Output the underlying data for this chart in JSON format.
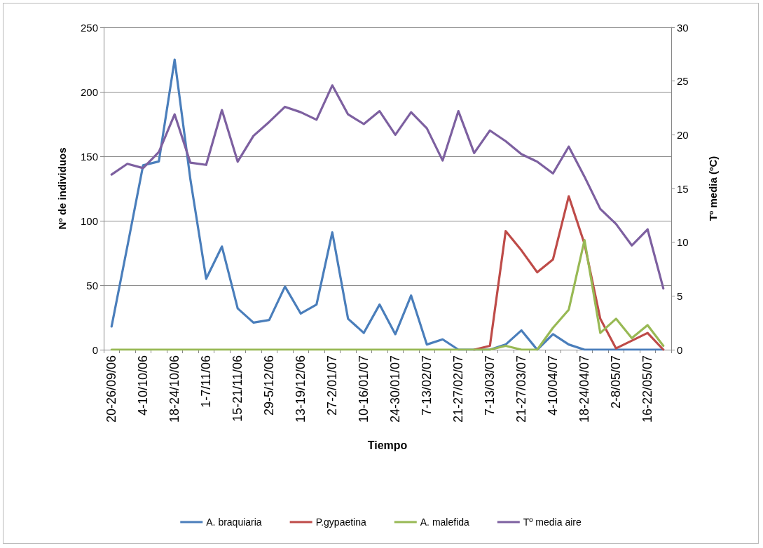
{
  "chart_data": {
    "type": "line",
    "xlabel": "Tiempo",
    "ylabel": "Nº de individuos",
    "y2label": "Tº media (ºC)",
    "categories": [
      "20-26/09/06",
      null,
      "4-10/10/06",
      null,
      "18-24/10/06",
      null,
      "1-7/11/06",
      null,
      "15-21/11/06",
      null,
      "29-5/12/06",
      null,
      "13-19/12/06",
      null,
      "27-2/01/07",
      null,
      "10-16/01/07",
      null,
      "24-30/01/07",
      null,
      "7-13/02/07",
      null,
      "21-27/02/07",
      null,
      "7-13/03/07",
      null,
      "21-27/03/07",
      null,
      "4-10/04/07",
      null,
      "18-24/04/07",
      null,
      "2-8/05/07",
      null,
      "16-22/05/07",
      null
    ],
    "series": [
      {
        "name": "A. braquiaria",
        "color": "#4a7ebb",
        "values": [
          18,
          80,
          143,
          146,
          225,
          132,
          55,
          80,
          32,
          21,
          23,
          49,
          28,
          35,
          91,
          24,
          13,
          35,
          12,
          42,
          4,
          8,
          0,
          0,
          0,
          4,
          15,
          0,
          12,
          4,
          0,
          0,
          0,
          0,
          0,
          0
        ]
      },
      {
        "name": "P.gypaetina",
        "color": "#be4b48",
        "values": [
          null,
          null,
          null,
          null,
          null,
          null,
          null,
          null,
          null,
          null,
          null,
          null,
          null,
          null,
          null,
          null,
          null,
          null,
          null,
          null,
          null,
          null,
          null,
          0,
          3,
          92,
          77,
          60,
          70,
          119,
          82,
          24,
          1,
          7,
          13,
          0
        ]
      },
      {
        "name": "A. malefida",
        "color": "#98b954",
        "values": [
          0,
          0,
          0,
          0,
          0,
          0,
          0,
          0,
          0,
          0,
          0,
          0,
          0,
          0,
          0,
          0,
          0,
          0,
          0,
          0,
          0,
          0,
          0,
          0,
          0,
          3,
          0,
          0,
          17,
          31,
          85,
          13,
          24,
          9,
          19,
          3
        ]
      },
      {
        "name": "Tº media aire",
        "color": "#7d60a0",
        "axis": "y2",
        "values": [
          16.3,
          17.3,
          16.9,
          18.4,
          21.9,
          17.4,
          17.2,
          22.3,
          17.5,
          19.9,
          21.2,
          22.6,
          22.1,
          21.4,
          24.6,
          21.9,
          21.0,
          22.2,
          20.0,
          22.1,
          20.6,
          17.6,
          22.2,
          18.3,
          20.4,
          19.4,
          18.2,
          17.5,
          16.4,
          18.9,
          16.1,
          13.1,
          11.7,
          9.7,
          11.2,
          5.7
        ]
      }
    ],
    "ylim": [
      0,
      250
    ],
    "yticks": [
      0,
      50,
      100,
      150,
      200,
      250
    ],
    "y2lim": [
      0,
      30
    ],
    "y2ticks": [
      0,
      5,
      10,
      15,
      20,
      25,
      30
    ],
    "grid": "y",
    "legend": "bottom",
    "marker": "none",
    "line_style": "solid"
  }
}
